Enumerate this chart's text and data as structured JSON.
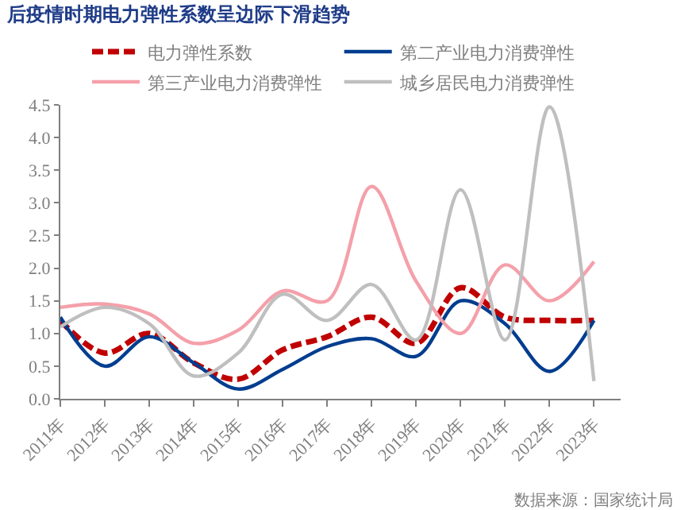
{
  "chart_data": {
    "type": "line",
    "title": "后疫情时期电力弹性系数呈边际下滑趋势",
    "categories": [
      "2011年",
      "2012年",
      "2013年",
      "2014年",
      "2015年",
      "2016年",
      "2017年",
      "2018年",
      "2019年",
      "2020年",
      "2021年",
      "2022年",
      "2023年"
    ],
    "series": [
      {
        "name": "电力弹性系数",
        "color": "#c00000",
        "line_style": "dashed",
        "values": [
          1.2,
          0.7,
          1.0,
          0.55,
          0.3,
          0.75,
          0.95,
          1.25,
          0.85,
          1.7,
          1.25,
          1.2,
          1.2
        ]
      },
      {
        "name": "第二产业电力消费弹性",
        "color": "#003d8f",
        "line_style": "solid",
        "values": [
          1.25,
          0.5,
          0.95,
          0.55,
          0.15,
          0.45,
          0.8,
          0.92,
          0.65,
          1.5,
          1.15,
          0.42,
          1.2
        ]
      },
      {
        "name": "第三产业电力消费弹性",
        "color": "#f4a0aa",
        "line_style": "solid",
        "values": [
          1.4,
          1.45,
          1.3,
          0.85,
          1.05,
          1.65,
          1.5,
          3.25,
          1.8,
          1.0,
          2.05,
          1.5,
          2.1
        ]
      },
      {
        "name": "城乡居民电力消费弹性",
        "color": "#bfbfbf",
        "line_style": "solid",
        "values": [
          1.1,
          1.4,
          1.15,
          0.35,
          0.7,
          1.6,
          1.2,
          1.75,
          0.9,
          3.2,
          0.9,
          4.47,
          0.27
        ]
      }
    ],
    "ylim": [
      0,
      4.5
    ],
    "yticks": [
      {
        "value": 0,
        "label": "0.0"
      },
      {
        "value": 0.5,
        "label": "0.5"
      },
      {
        "value": 1,
        "label": "1.0"
      },
      {
        "value": 1.5,
        "label": "1.5"
      },
      {
        "value": 2,
        "label": "2.0"
      },
      {
        "value": 2.5,
        "label": "2.5"
      },
      {
        "value": 3,
        "label": "3.0"
      },
      {
        "value": 3.5,
        "label": "3.5"
      },
      {
        "value": 4,
        "label": "4.0"
      },
      {
        "value": 4.5,
        "label": "4.5"
      }
    ],
    "grid": false,
    "legend": "top",
    "marker": "none",
    "annotations": [
      "数据来源：国家统计局"
    ]
  }
}
